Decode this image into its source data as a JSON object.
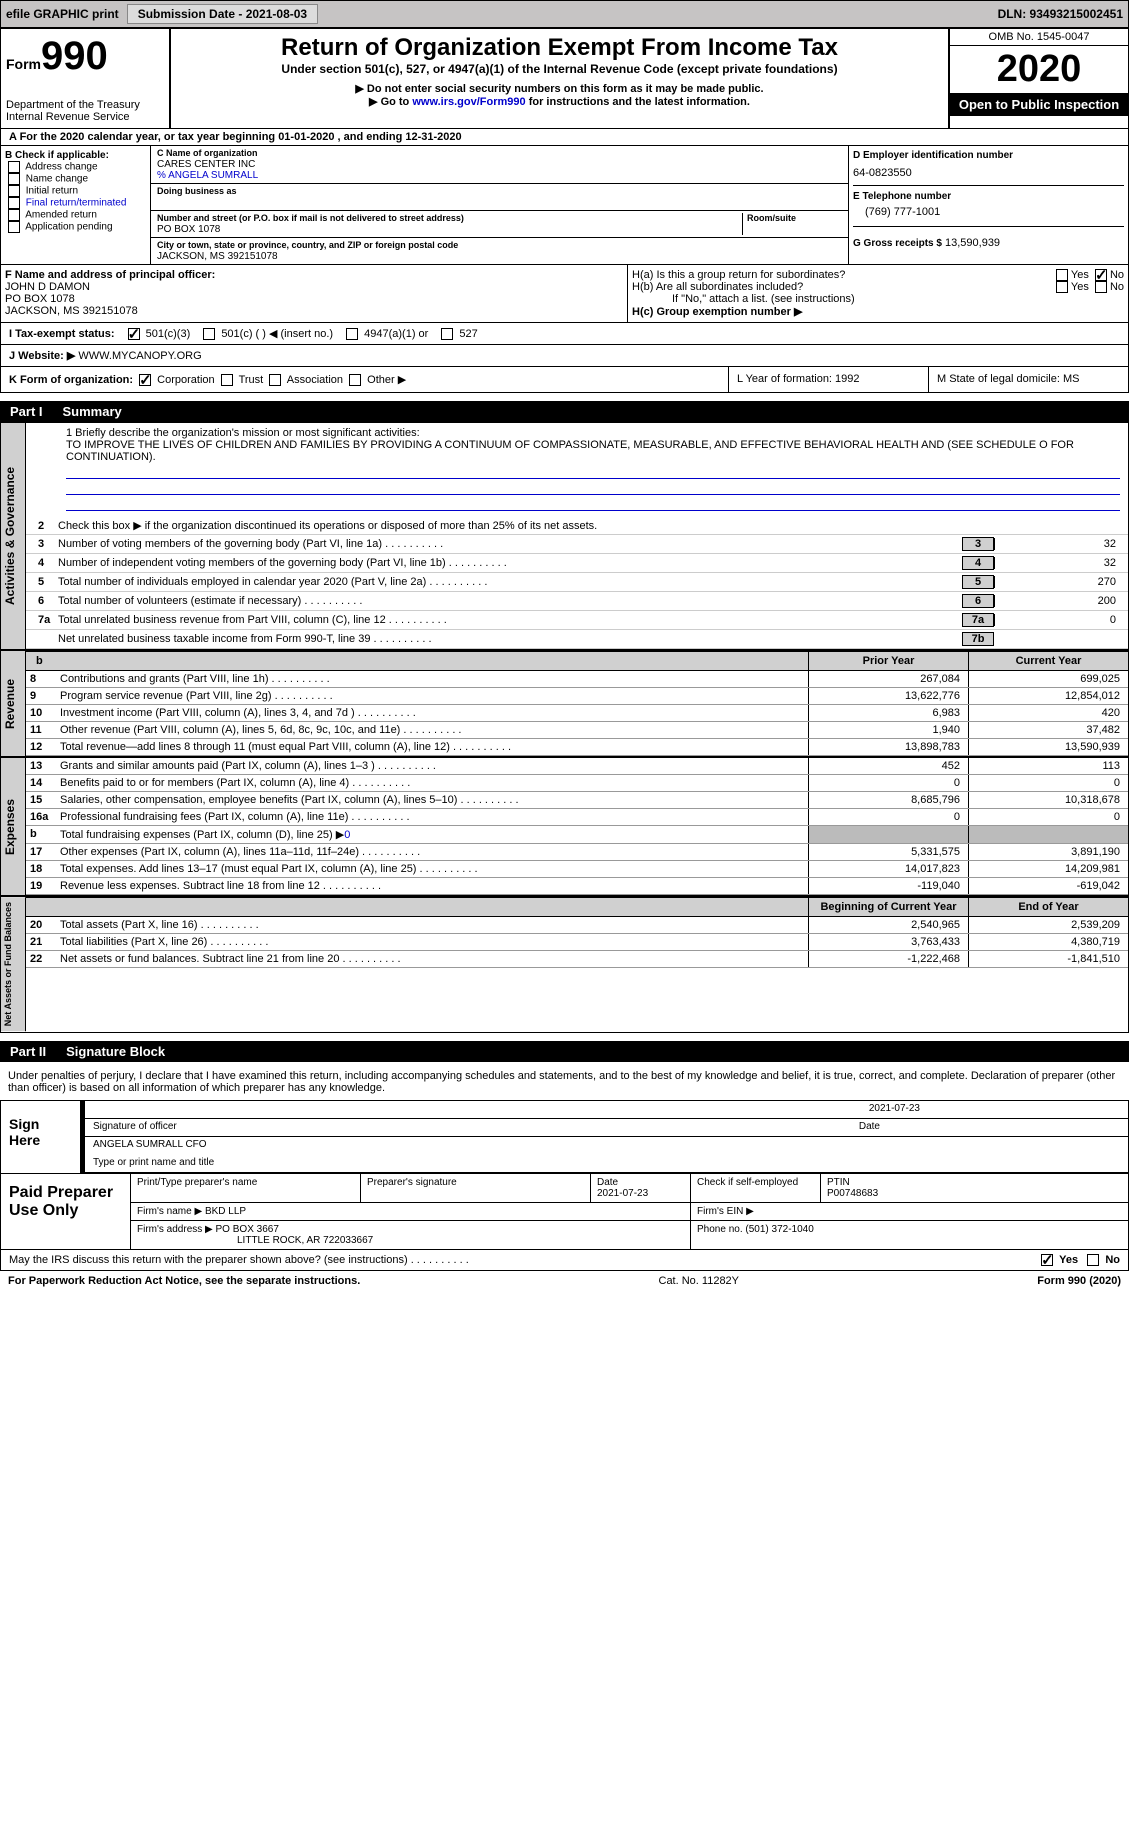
{
  "top_bar": {
    "efile": "efile GRAPHIC print",
    "submission": "Submission Date - 2021-08-03",
    "dln": "DLN: 93493215002451"
  },
  "header": {
    "form_word": "Form",
    "form_num": "990",
    "dept": "Department of the Treasury\nInternal Revenue Service",
    "title": "Return of Organization Exempt From Income Tax",
    "subtitle": "Under section 501(c), 527, or 4947(a)(1) of the Internal Revenue Code (except private foundations)",
    "instr1": "▶ Do not enter social security numbers on this form as it may be made public.",
    "instr2_pre": "▶ Go to ",
    "instr2_link": "www.irs.gov/Form990",
    "instr2_post": " for instructions and the latest information.",
    "omb": "OMB No. 1545-0047",
    "year": "2020",
    "open": "Open to Public Inspection"
  },
  "row_a": "A For the 2020 calendar year, or tax year beginning 01-01-2020   , and ending 12-31-2020",
  "col_b": {
    "header": "B Check if applicable:",
    "items": [
      "Address change",
      "Name change",
      "Initial return",
      "Final return/terminated",
      "Amended return",
      "Application pending"
    ]
  },
  "col_c": {
    "name_lbl": "C Name of organization",
    "name": "CARES CENTER INC",
    "care_of": "% ANGELA SUMRALL",
    "dba_lbl": "Doing business as",
    "addr_lbl": "Number and street (or P.O. box if mail is not delivered to street address)",
    "room_lbl": "Room/suite",
    "addr": "PO BOX 1078",
    "city_lbl": "City or town, state or province, country, and ZIP or foreign postal code",
    "city": "JACKSON, MS  392151078"
  },
  "col_d": {
    "ein_lbl": "D Employer identification number",
    "ein": "64-0823550",
    "tel_lbl": "E Telephone number",
    "tel": "(769) 777-1001",
    "gross_lbl": "G Gross receipts $",
    "gross": "13,590,939"
  },
  "col_f": {
    "lbl": "F Name and address of principal officer:",
    "name": "JOHN D DAMON",
    "addr1": "PO BOX 1078",
    "addr2": "JACKSON, MS  392151078"
  },
  "col_h": {
    "ha": "H(a)  Is this a group return for subordinates?",
    "hb": "H(b)  Are all subordinates included?",
    "hb_note": "If \"No,\" attach a list. (see instructions)",
    "hc": "H(c)  Group exemption number ▶"
  },
  "tax_status": {
    "lbl": "I   Tax-exempt status:",
    "opts": [
      "501(c)(3)",
      "501(c) (  ) ◀ (insert no.)",
      "4947(a)(1) or",
      "527"
    ]
  },
  "website": {
    "lbl": "J   Website: ▶",
    "val": "WWW.MYCANOPY.ORG"
  },
  "row_k": {
    "k_lbl": "K Form of organization:",
    "k_opts": [
      "Corporation",
      "Trust",
      "Association",
      "Other ▶"
    ],
    "l": "L Year of formation: 1992",
    "m": "M State of legal domicile: MS"
  },
  "part1": {
    "title": "Part I",
    "name": "Summary",
    "line1_lbl": "1   Briefly describe the organization's mission or most significant activities:",
    "mission": "TO IMPROVE THE LIVES OF CHILDREN AND FAMILIES BY PROVIDING A CONTINUUM OF COMPASSIONATE, MEASURABLE, AND EFFECTIVE BEHAVIORAL HEALTH AND (SEE SCHEDULE O FOR CONTINUATION).",
    "line2": "Check this box ▶      if the organization discontinued its operations or disposed of more than 25% of its net assets.",
    "gov_label": "Activities & Governance",
    "rev_label": "Revenue",
    "exp_label": "Expenses",
    "net_label": "Net Assets or Fund Balances",
    "gov_rows": [
      {
        "n": "3",
        "d": "Number of voting members of the governing body (Part VI, line 1a)",
        "box": "3",
        "v": "32"
      },
      {
        "n": "4",
        "d": "Number of independent voting members of the governing body (Part VI, line 1b)",
        "box": "4",
        "v": "32"
      },
      {
        "n": "5",
        "d": "Total number of individuals employed in calendar year 2020 (Part V, line 2a)",
        "box": "5",
        "v": "270"
      },
      {
        "n": "6",
        "d": "Total number of volunteers (estimate if necessary)",
        "box": "6",
        "v": "200"
      },
      {
        "n": "7a",
        "d": "Total unrelated business revenue from Part VIII, column (C), line 12",
        "box": "7a",
        "v": "0"
      },
      {
        "n": "",
        "d": "Net unrelated business taxable income from Form 990-T, line 39",
        "box": "7b",
        "v": ""
      }
    ],
    "col_headers": {
      "b": "b",
      "prior": "Prior Year",
      "current": "Current Year",
      "begin": "Beginning of Current Year",
      "end": "End of Year"
    },
    "rev_rows": [
      {
        "n": "8",
        "d": "Contributions and grants (Part VIII, line 1h)",
        "c1": "267,084",
        "c2": "699,025"
      },
      {
        "n": "9",
        "d": "Program service revenue (Part VIII, line 2g)",
        "c1": "13,622,776",
        "c2": "12,854,012"
      },
      {
        "n": "10",
        "d": "Investment income (Part VIII, column (A), lines 3, 4, and 7d )",
        "c1": "6,983",
        "c2": "420"
      },
      {
        "n": "11",
        "d": "Other revenue (Part VIII, column (A), lines 5, 6d, 8c, 9c, 10c, and 11e)",
        "c1": "1,940",
        "c2": "37,482"
      },
      {
        "n": "12",
        "d": "Total revenue—add lines 8 through 11 (must equal Part VIII, column (A), line 12)",
        "c1": "13,898,783",
        "c2": "13,590,939"
      }
    ],
    "exp_rows": [
      {
        "n": "13",
        "d": "Grants and similar amounts paid (Part IX, column (A), lines 1–3 )",
        "c1": "452",
        "c2": "113"
      },
      {
        "n": "14",
        "d": "Benefits paid to or for members (Part IX, column (A), line 4)",
        "c1": "0",
        "c2": "0"
      },
      {
        "n": "15",
        "d": "Salaries, other compensation, employee benefits (Part IX, column (A), lines 5–10)",
        "c1": "8,685,796",
        "c2": "10,318,678"
      },
      {
        "n": "16a",
        "d": "Professional fundraising fees (Part IX, column (A), line 11e)",
        "c1": "0",
        "c2": "0"
      }
    ],
    "line16b": {
      "n": "b",
      "d": "Total fundraising expenses (Part IX, column (D), line 25) ▶",
      "v": "0"
    },
    "exp_rows2": [
      {
        "n": "17",
        "d": "Other expenses (Part IX, column (A), lines 11a–11d, 11f–24e)",
        "c1": "5,331,575",
        "c2": "3,891,190"
      },
      {
        "n": "18",
        "d": "Total expenses. Add lines 13–17 (must equal Part IX, column (A), line 25)",
        "c1": "14,017,823",
        "c2": "14,209,981"
      },
      {
        "n": "19",
        "d": "Revenue less expenses. Subtract line 18 from line 12",
        "c1": "-119,040",
        "c2": "-619,042"
      }
    ],
    "net_rows": [
      {
        "n": "20",
        "d": "Total assets (Part X, line 16)",
        "c1": "2,540,965",
        "c2": "2,539,209"
      },
      {
        "n": "21",
        "d": "Total liabilities (Part X, line 26)",
        "c1": "3,763,433",
        "c2": "4,380,719"
      },
      {
        "n": "22",
        "d": "Net assets or fund balances. Subtract line 21 from line 20",
        "c1": "-1,222,468",
        "c2": "-1,841,510"
      }
    ]
  },
  "part2": {
    "title": "Part II",
    "name": "Signature Block",
    "decl": "Under penalties of perjury, I declare that I have examined this return, including accompanying schedules and statements, and to the best of my knowledge and belief, it is true, correct, and complete. Declaration of preparer (other than officer) is based on all information of which preparer has any knowledge.",
    "sign_here": "Sign Here",
    "sig_officer": "Signature of officer",
    "sig_date": "2021-07-23",
    "date_lbl": "Date",
    "officer_name": "ANGELA SUMRALL CFO",
    "type_name": "Type or print name and title",
    "paid_prep": "Paid Preparer Use Only",
    "prep_h": [
      "Print/Type preparer's name",
      "Preparer's signature",
      "Date",
      "",
      "PTIN"
    ],
    "prep_r1": [
      "",
      "",
      "2021-07-23",
      "Check      if self-employed",
      "P00748683"
    ],
    "firm_name_lbl": "Firm's name    ▶",
    "firm_name": "BKD LLP",
    "firm_ein_lbl": "Firm's EIN ▶",
    "firm_addr_lbl": "Firm's address ▶",
    "firm_addr": "PO BOX 3667",
    "firm_city": "LITTLE ROCK, AR  722033667",
    "firm_phone_lbl": "Phone no.",
    "firm_phone": "(501) 372-1040",
    "discuss": "May the IRS discuss this return with the preparer shown above? (see instructions)",
    "yes": "Yes",
    "no": "No"
  },
  "footer": {
    "left": "For Paperwork Reduction Act Notice, see the separate instructions.",
    "mid": "Cat. No. 11282Y",
    "right": "Form 990 (2020)"
  }
}
